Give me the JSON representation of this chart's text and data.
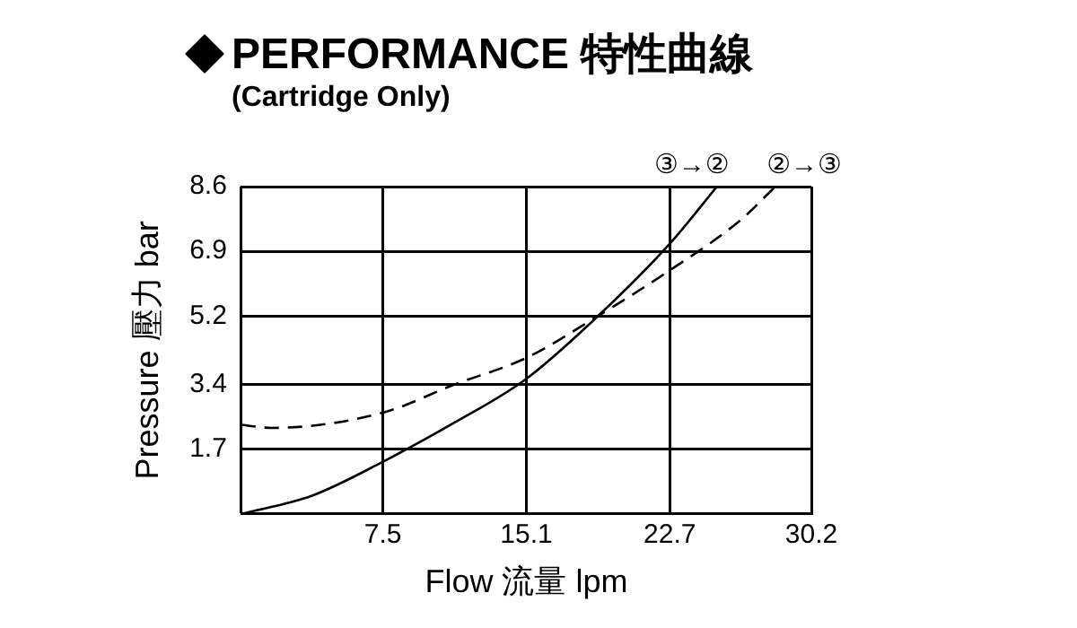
{
  "chart_data": {
    "type": "line",
    "title": "PERFORMANCE 特性曲線",
    "subtitle": "(Cartridge Only)",
    "xlabel": "Flow 流量 lpm",
    "ylabel": "Pressure 壓力 bar",
    "xlim": [
      0,
      30.2
    ],
    "xticks": [
      {
        "value": 0,
        "label": null
      },
      7.5,
      15.1,
      22.7,
      30.2
    ],
    "ylim": [
      0,
      8.6
    ],
    "yticks": [
      {
        "value": 0,
        "label": null
      },
      1.7,
      3.4,
      5.2,
      6.9,
      8.6
    ],
    "grid": true,
    "marker": "none",
    "series": [
      {
        "name": "③→②",
        "color": "#000000",
        "line_style": "solid",
        "x": [
          0,
          3.75,
          7.5,
          11.3,
          15.1,
          18.9,
          22.7,
          25.2
        ],
        "values": [
          0,
          0.48,
          1.37,
          2.4,
          3.55,
          5.2,
          7.1,
          8.6
        ]
      },
      {
        "name": "②→③",
        "color": "#000000",
        "line_style": "dashed",
        "x": [
          0,
          1.6,
          7.5,
          11.3,
          15.1,
          18.9,
          22.7,
          26.4,
          28.3
        ],
        "values": [
          2.34,
          2.26,
          2.66,
          3.4,
          4.1,
          5.2,
          6.4,
          7.7,
          8.6
        ]
      }
    ]
  }
}
